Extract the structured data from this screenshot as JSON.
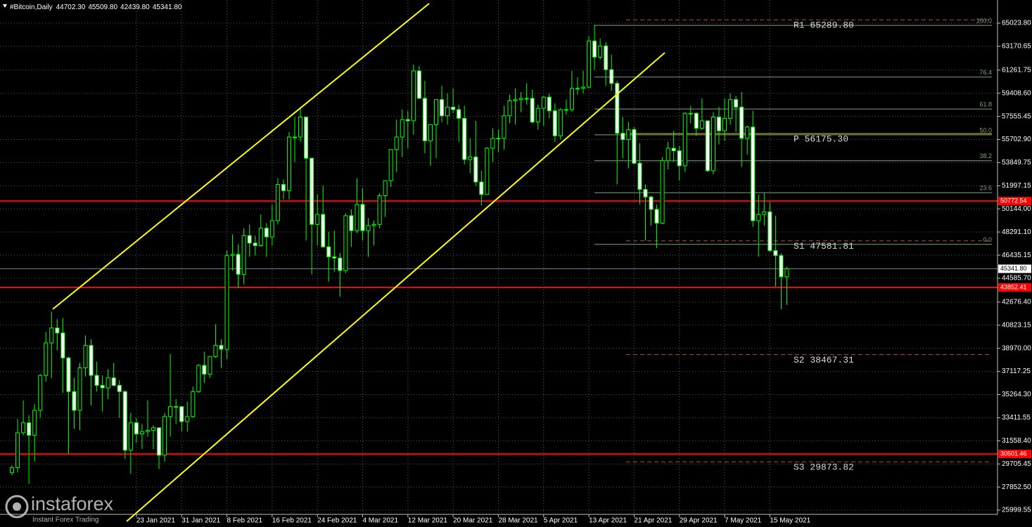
{
  "chart_data": {
    "type": "candlestick",
    "header": {
      "symbol": "#Bitcoin,Daily",
      "ohlc": [
        "44702.30",
        "45509.80",
        "42439.80",
        "45341.80"
      ]
    },
    "watermark": {
      "brand": "instaforex",
      "slogan": "Instant Forex Trading"
    },
    "categories": [
      null,
      null,
      null,
      null,
      null,
      null,
      null,
      null,
      null,
      null,
      null,
      null,
      null,
      null,
      null,
      null,
      null,
      null,
      null,
      null,
      null,
      null,
      "23 Jan 2021",
      null,
      null,
      null,
      null,
      null,
      null,
      null,
      "31 Jan 2021",
      null,
      null,
      null,
      null,
      null,
      null,
      null,
      "8 Feb 2021",
      null,
      null,
      null,
      null,
      null,
      null,
      null,
      "16 Feb 2021",
      null,
      null,
      null,
      null,
      null,
      null,
      null,
      "24 Feb 2021",
      null,
      null,
      null,
      null,
      null,
      null,
      null,
      "4 Mar 2021",
      null,
      null,
      null,
      null,
      null,
      null,
      null,
      "12 Mar 2021",
      null,
      null,
      null,
      null,
      null,
      null,
      null,
      "20 Mar 2021",
      null,
      null,
      null,
      null,
      null,
      null,
      null,
      "28 Mar 2021",
      null,
      null,
      null,
      null,
      null,
      null,
      null,
      "5 Apr 2021",
      null,
      null,
      null,
      null,
      null,
      null,
      null,
      "13 Apr 2021",
      null,
      null,
      null,
      null,
      null,
      null,
      null,
      "21 Apr 2021",
      null,
      null,
      null,
      null,
      null,
      null,
      null,
      "29 Apr 2021",
      null,
      null,
      null,
      null,
      null,
      null,
      null,
      "7 May 2021",
      null,
      null,
      null,
      null,
      null,
      null,
      null,
      "15 May 2021",
      null,
      null,
      null
    ],
    "open": [
      29000,
      29400,
      32200,
      33000,
      32000,
      34000,
      36800,
      39400,
      40600,
      40200,
      38200,
      35500,
      34000,
      37400,
      39200,
      36800,
      36000,
      35800,
      36600,
      36000,
      35500,
      30800,
      33000,
      32100,
      32300,
      32400,
      32600,
      30400,
      33500,
      34300,
      34300,
      33100,
      33500,
      35500,
      37600,
      36900,
      38300,
      39200,
      38900,
      46400,
      46500,
      44900,
      48000,
      47400,
      47200,
      48600,
      47900,
      49200,
      52100,
      51600,
      55900,
      55900,
      57500,
      54200,
      48900,
      49700,
      47100,
      46300,
      46200,
      45200,
      49600,
      48400,
      50500,
      48400,
      48800,
      48900,
      51200,
      52400,
      54900,
      55900,
      57300,
      57200,
      61200,
      59000,
      55600,
      56900,
      58900,
      57600,
      58300,
      58100,
      57400,
      54100,
      54300,
      52300,
      51300,
      55000,
      55800,
      55800,
      57600,
      58800,
      58900,
      59000,
      59000,
      57100,
      58200,
      59100,
      58000,
      56000,
      58100,
      58100,
      59800,
      59800,
      59900,
      63600,
      62300,
      63200,
      61300,
      60200,
      56200,
      55700,
      56500,
      53800,
      51700,
      51100,
      50100,
      49000,
      54000,
      55000,
      54800,
      53600,
      57800,
      57800,
      56600,
      57200,
      53200,
      57500,
      56400,
      57400,
      58900,
      58300,
      55800,
      56700,
      49200,
      49700,
      49900,
      46800,
      46400,
      44702.3
    ],
    "high": [
      29600,
      33300,
      34800,
      33600,
      34500,
      36900,
      40300,
      41900,
      41300,
      41400,
      38300,
      36600,
      37800,
      40000,
      39700,
      37900,
      36800,
      37300,
      37800,
      36400,
      35600,
      33800,
      33400,
      32900,
      34800,
      32800,
      32600,
      33800,
      38500,
      34900,
      34300,
      34700,
      35900,
      37700,
      38700,
      38300,
      40900,
      39700,
      46800,
      48100,
      47300,
      48600,
      48900,
      48000,
      49700,
      49000,
      50500,
      52600,
      52500,
      56300,
      57500,
      58300,
      57500,
      54200,
      51300,
      52000,
      48300,
      48400,
      46600,
      49800,
      50100,
      52600,
      51800,
      49400,
      49200,
      51400,
      52400,
      54900,
      57300,
      58100,
      58000,
      61700,
      61600,
      60400,
      56900,
      58900,
      60000,
      59400,
      59800,
      58500,
      58400,
      55800,
      57200,
      53200,
      55100,
      56600,
      56500,
      58400,
      59300,
      59800,
      59500,
      60200,
      59700,
      58500,
      59200,
      59400,
      58600,
      58200,
      58900,
      61200,
      60700,
      61200,
      64000,
      64900,
      63800,
      63500,
      62500,
      60400,
      57500,
      57100,
      56700,
      55400,
      52100,
      51200,
      50500,
      54300,
      55500,
      56400,
      55200,
      57900,
      58400,
      57900,
      59000,
      57200,
      57900,
      58300,
      59000,
      59400,
      59200,
      59500,
      56800,
      58000,
      51300,
      51400,
      50700,
      49600,
      46600,
      45509.8
    ],
    "low": [
      28800,
      29000,
      32000,
      28100,
      29900,
      33400,
      36300,
      36600,
      38800,
      35400,
      30500,
      32500,
      32400,
      36700,
      34400,
      35500,
      33900,
      34900,
      35900,
      33400,
      30100,
      28900,
      31400,
      30900,
      31900,
      30900,
      29300,
      29900,
      31900,
      32900,
      32300,
      32300,
      33400,
      35400,
      36200,
      36600,
      38200,
      37400,
      38100,
      45200,
      43800,
      44100,
      46300,
      46400,
      47100,
      46300,
      47200,
      48900,
      50900,
      50900,
      53900,
      55500,
      47600,
      44900,
      47200,
      47000,
      44300,
      45100,
      43100,
      45000,
      47100,
      48200,
      47600,
      46300,
      47200,
      48600,
      49500,
      51900,
      53100,
      54300,
      55000,
      56100,
      59000,
      54600,
      53600,
      54200,
      57100,
      56900,
      57800,
      55500,
      53700,
      53000,
      52000,
      50400,
      51300,
      53900,
      54700,
      54900,
      57000,
      56900,
      57900,
      58500,
      57000,
      56500,
      56800,
      57400,
      55500,
      55700,
      57700,
      57900,
      59300,
      59400,
      59800,
      61300,
      62100,
      60000,
      59600,
      52100,
      54200,
      53400,
      53700,
      50500,
      47600,
      48800,
      47000,
      48900,
      53300,
      53900,
      52400,
      53100,
      57000,
      56000,
      56500,
      53100,
      52900,
      55300,
      55600,
      56900,
      56300,
      53500,
      54500,
      48700,
      46300,
      48800,
      46700,
      43900,
      42100,
      42439.8
    ],
    "close": [
      29400,
      32200,
      33000,
      32000,
      34000,
      36800,
      39400,
      40600,
      40200,
      38200,
      35500,
      34000,
      37400,
      39200,
      36800,
      36000,
      35800,
      36600,
      36000,
      35500,
      30800,
      33000,
      32100,
      32300,
      32400,
      32600,
      30400,
      33500,
      34300,
      34300,
      33100,
      33500,
      35500,
      37600,
      36900,
      38300,
      39200,
      38900,
      46400,
      46500,
      44900,
      48000,
      47400,
      47200,
      48600,
      47900,
      49200,
      52100,
      51600,
      55900,
      55900,
      57500,
      54200,
      48900,
      49700,
      47100,
      46300,
      46200,
      45200,
      49600,
      48400,
      50500,
      48400,
      48800,
      48900,
      51200,
      52400,
      54900,
      55900,
      57300,
      57200,
      61200,
      59000,
      55600,
      56900,
      58900,
      57600,
      58300,
      58100,
      57400,
      54100,
      54300,
      52300,
      51300,
      55000,
      55800,
      55800,
      57600,
      58800,
      58900,
      59000,
      59000,
      57100,
      58200,
      59100,
      58000,
      56000,
      58100,
      58100,
      59800,
      59800,
      59900,
      63600,
      62300,
      63200,
      61300,
      60200,
      56200,
      55700,
      56500,
      53800,
      51700,
      51100,
      50100,
      49000,
      54000,
      55000,
      54800,
      53600,
      57800,
      57800,
      56600,
      57200,
      53200,
      57500,
      56400,
      57400,
      58900,
      58300,
      55800,
      56700,
      49200,
      49700,
      49900,
      46800,
      46400,
      44702.3,
      45341.8
    ],
    "bull_color": "#000000",
    "bear_color": "#ffffff",
    "wick_color": "#00ff00",
    "ylim": [
      25663,
      66882
    ],
    "yticks": [
      {
        "value": 65023.8,
        "label": "65023.80"
      },
      {
        "value": 63170.65,
        "label": "63170.65"
      },
      {
        "value": 61261.75,
        "label": "61261.75"
      },
      {
        "value": 59408.6,
        "label": "59408.60"
      },
      {
        "value": 57555.45,
        "label": "57555.45"
      },
      {
        "value": 55702.9,
        "label": "55702.90"
      },
      {
        "value": 53849.75,
        "label": "53849.75"
      },
      {
        "value": 51997.15,
        "label": "51997.15"
      },
      {
        "value": 50144.0,
        "label": "50144.00"
      },
      {
        "value": 48291.1,
        "label": "48291.10"
      },
      {
        "value": 46435.15,
        "label": "46435.15"
      },
      {
        "value": 44585.7,
        "label": "44585.70"
      },
      {
        "value": 42676.4,
        "label": "42676.40"
      },
      {
        "value": 40823.15,
        "label": "40823.15"
      },
      {
        "value": 38970.0,
        "label": "38970.00"
      },
      {
        "value": 37117.25,
        "label": "37117.25"
      },
      {
        "value": 35264.3,
        "label": "35264.30"
      },
      {
        "value": 33411.55,
        "label": "33411.55"
      },
      {
        "value": 31558.4,
        "label": "31558.40"
      },
      {
        "value": 29705.45,
        "label": "29705.45"
      },
      {
        "value": 27852.5,
        "label": "27852.50"
      },
      {
        "value": 25999.55,
        "label": "25999.55"
      }
    ],
    "grid": true,
    "levels": [
      {
        "value": 50772.54,
        "label": "50772.54",
        "color": "#ff0000",
        "box": "#ff0000",
        "text_color": "#ffffff"
      },
      {
        "value": 43852.41,
        "label": "43852.41",
        "color": "#ff0000",
        "box": "#ff0000",
        "text_color": "#ffffff"
      },
      {
        "value": 30501.46,
        "label": "30501.46",
        "color": "#ff0000",
        "box": "#ff0000",
        "text_color": "#ffffff"
      },
      {
        "value": 45341.8,
        "label": "45341.80",
        "color": "#6f8090",
        "box": "#ffffff",
        "text_color": "#000000"
      }
    ],
    "pivots": [
      {
        "value": 65289.8,
        "label": "R1 65289.80",
        "color": "#b0503a",
        "style": "dashed"
      },
      {
        "value": 56175.3,
        "label": "P 56175.30",
        "color": "#d8c81c",
        "style": "solid"
      },
      {
        "value": 47581.81,
        "label": "S1 47581.81",
        "color": "#b0503a",
        "style": "dashed"
      },
      {
        "value": 38467.31,
        "label": "S2 38467.31",
        "color": "#b0503a",
        "style": "dashed"
      },
      {
        "value": 29873.82,
        "label": "S3 29873.82",
        "color": "#b0503a",
        "style": "dashed"
      }
    ],
    "fibonacci": {
      "color": "#7f9f7f",
      "levels": [
        {
          "value": 64850,
          "label": "100.0"
        },
        {
          "value": 60708,
          "label": "76.4"
        },
        {
          "value": 58146,
          "label": "61.8"
        },
        {
          "value": 56075,
          "label": "50.0"
        },
        {
          "value": 54004,
          "label": "38.2"
        },
        {
          "value": 51442,
          "label": "23.6"
        },
        {
          "value": 47300,
          "label": "0.0"
        }
      ]
    }
  }
}
